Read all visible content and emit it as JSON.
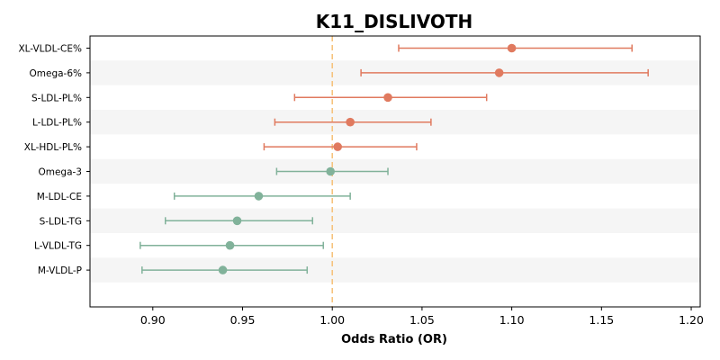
{
  "chart_data": {
    "type": "forest",
    "title": "K11_DISLIVOTH",
    "xlabel": "Odds Ratio (OR)",
    "ylabel": "",
    "xlim": [
      0.865,
      1.205
    ],
    "xticks": [
      0.9,
      0.95,
      1.0,
      1.05,
      1.1,
      1.15,
      1.2
    ],
    "xtick_labels": [
      "0.90",
      "0.95",
      "1.00",
      "1.05",
      "1.10",
      "1.15",
      "1.20"
    ],
    "reference_line": 1.0,
    "reference_color": "#f6c37e",
    "colors": {
      "risk": "#e07a5f",
      "protective": "#81b29a",
      "band": "#f5f5f5"
    },
    "categories": [
      "XL-VLDL-CE%",
      "Omega-6%",
      "S-LDL-PL%",
      "L-LDL-PL%",
      "XL-HDL-PL%",
      "Omega-3",
      "M-LDL-CE",
      "S-LDL-TG",
      "L-VLDL-TG",
      "M-VLDL-P"
    ],
    "or": [
      1.1,
      1.093,
      1.031,
      1.01,
      1.003,
      0.999,
      0.959,
      0.947,
      0.943,
      0.939
    ],
    "ci_low": [
      1.037,
      1.016,
      0.979,
      0.968,
      0.962,
      0.969,
      0.912,
      0.907,
      0.893,
      0.894
    ],
    "ci_high": [
      1.167,
      1.176,
      1.086,
      1.055,
      1.047,
      1.031,
      1.01,
      0.989,
      0.995,
      0.986
    ]
  }
}
